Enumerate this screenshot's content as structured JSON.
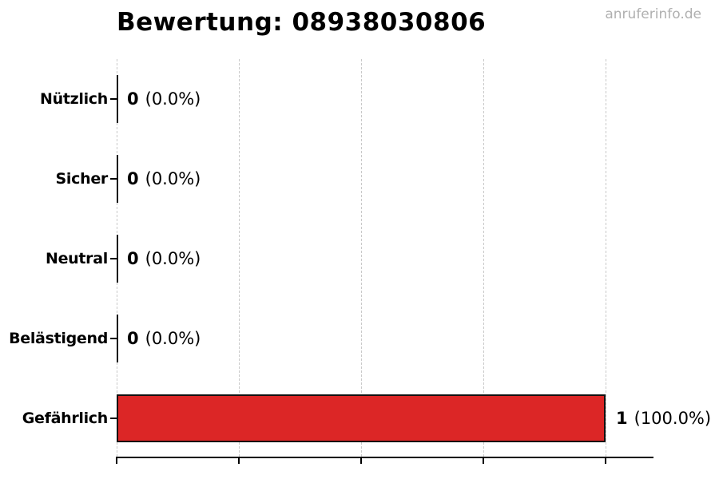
{
  "page": {
    "watermark": "anruferinfo.de"
  },
  "chart_data": {
    "type": "bar",
    "orientation": "horizontal",
    "title": "Bewertung: 08938030806",
    "categories": [
      "Nützlich",
      "Sicher",
      "Neutral",
      "Belästigend",
      "Gefährlich"
    ],
    "values": [
      0,
      0,
      0,
      0,
      1
    ],
    "percentages": [
      0.0,
      0.0,
      0.0,
      0.0,
      100.0
    ],
    "rows": [
      {
        "label": "Nützlich",
        "count": "0",
        "pct": "(0.0%)",
        "value": 0
      },
      {
        "label": "Sicher",
        "count": "0",
        "pct": "(0.0%)",
        "value": 0
      },
      {
        "label": "Neutral",
        "count": "0",
        "pct": "(0.0%)",
        "value": 0
      },
      {
        "label": "Belästigend",
        "count": "0",
        "pct": "(0.0%)",
        "value": 0
      },
      {
        "label": "Gefährlich",
        "count": "1",
        "pct": "(100.0%)",
        "value": 1
      }
    ],
    "xlim": [
      0,
      1.1
    ],
    "xticks": [
      0,
      0.25,
      0.5,
      0.75,
      1.0
    ],
    "grid": true,
    "legend": false,
    "colors": {
      "bar_fill": "#dc2626",
      "bar_edge": "#111111",
      "grid": "#c9c9c9",
      "axis": "#000000",
      "watermark": "#b0b0b0",
      "text": "#000000"
    }
  }
}
